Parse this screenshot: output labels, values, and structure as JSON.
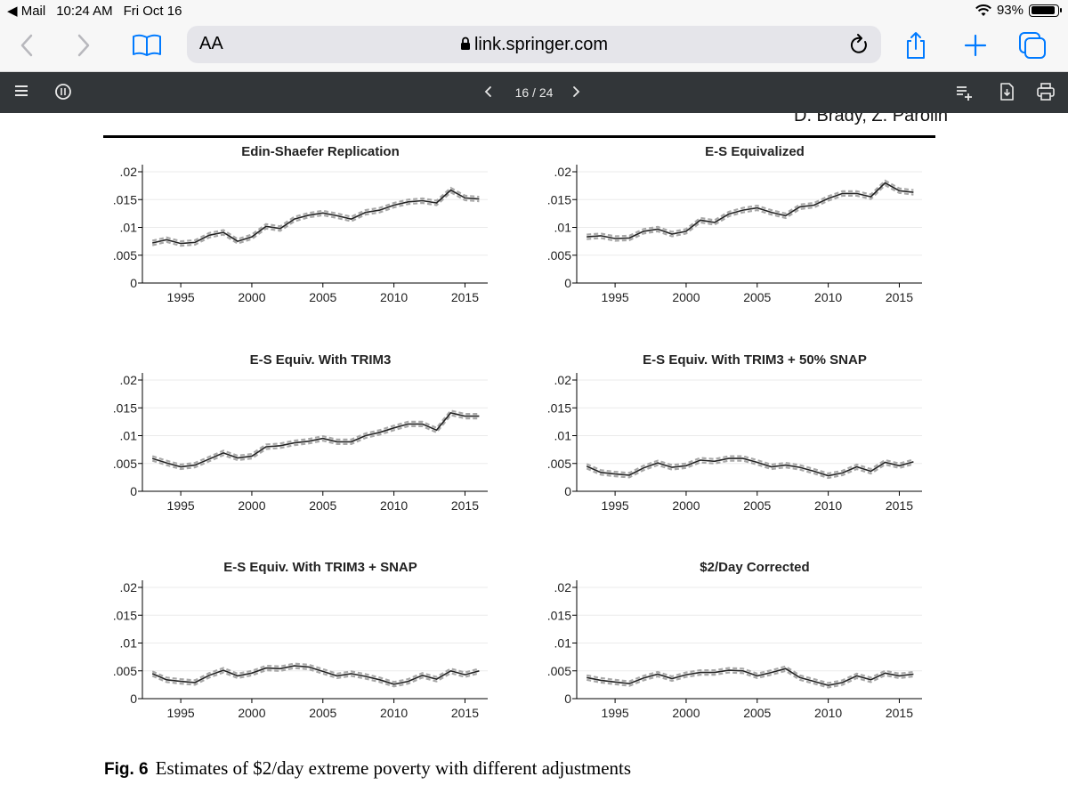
{
  "status_bar": {
    "back_app": "Mail",
    "time": "10:24 AM",
    "date": "Fri Oct 16",
    "battery": "93%",
    "battery_level": 0.93
  },
  "browser": {
    "text_size_label": "AA",
    "url": "link.springer.com"
  },
  "pdf_toolbar": {
    "page_indicator": "16 / 24"
  },
  "document": {
    "running_head": "D. Brady, Z. Parolin",
    "caption_label": "Fig. 6",
    "caption_text": "Estimates of $2/day extreme poverty with different adjustments"
  },
  "colors": {
    "line": "#222222",
    "band": "#a8a8a8",
    "grid": "#ebebeb",
    "pdf_bar": "#323639",
    "safari_bar": "#f7f7f7",
    "address": "#e5e5ea",
    "accent": "#007aff"
  },
  "chart_data": [
    {
      "type": "line",
      "title": "Edin-Shaefer Replication",
      "x": [
        1993,
        1994,
        1995,
        1996,
        1997,
        1998,
        1999,
        2000,
        2001,
        2002,
        2003,
        2004,
        2005,
        2006,
        2007,
        2008,
        2009,
        2010,
        2011,
        2012,
        2013,
        2014,
        2015,
        2016
      ],
      "y": [
        0.0072,
        0.0078,
        0.0071,
        0.0073,
        0.0086,
        0.0091,
        0.0075,
        0.0083,
        0.0102,
        0.0098,
        0.0115,
        0.0122,
        0.0126,
        0.0121,
        0.0115,
        0.0127,
        0.0131,
        0.014,
        0.0146,
        0.0148,
        0.0144,
        0.0167,
        0.0153,
        0.0151
      ],
      "band": 0.0004,
      "xticks": [
        "1995",
        "2000",
        "2005",
        "2010",
        "2015"
      ],
      "yticks": [
        "0",
        ".005",
        ".01",
        ".015",
        ".02"
      ],
      "ylim": [
        0,
        0.02
      ],
      "grid": true
    },
    {
      "type": "line",
      "title": "E-S Equivalized",
      "x": [
        1993,
        1994,
        1995,
        1996,
        1997,
        1998,
        1999,
        2000,
        2001,
        2002,
        2003,
        2004,
        2005,
        2006,
        2007,
        2008,
        2009,
        2010,
        2011,
        2012,
        2013,
        2014,
        2015,
        2016
      ],
      "y": [
        0.0083,
        0.0085,
        0.008,
        0.0081,
        0.0093,
        0.0097,
        0.0088,
        0.0093,
        0.0113,
        0.0109,
        0.0124,
        0.0131,
        0.0135,
        0.0127,
        0.0121,
        0.0137,
        0.014,
        0.0152,
        0.0161,
        0.0161,
        0.0155,
        0.018,
        0.0166,
        0.0163
      ],
      "band": 0.0004,
      "xticks": [
        "1995",
        "2000",
        "2005",
        "2010",
        "2015"
      ],
      "yticks": [
        "0",
        ".005",
        ".01",
        ".015",
        ".02"
      ],
      "ylim": [
        0,
        0.02
      ],
      "grid": true
    },
    {
      "type": "line",
      "title": "E-S Equiv. With TRIM3",
      "x": [
        1993,
        1994,
        1995,
        1996,
        1997,
        1998,
        1999,
        2000,
        2001,
        2002,
        2003,
        2004,
        2005,
        2006,
        2007,
        2008,
        2009,
        2010,
        2011,
        2012,
        2013,
        2014,
        2015,
        2016
      ],
      "y": [
        0.0059,
        0.0051,
        0.0044,
        0.0047,
        0.0058,
        0.0069,
        0.006,
        0.0063,
        0.008,
        0.0082,
        0.0087,
        0.009,
        0.0095,
        0.0089,
        0.0089,
        0.01,
        0.0106,
        0.0114,
        0.0121,
        0.0121,
        0.011,
        0.0141,
        0.0135,
        0.0135
      ],
      "band": 0.0004,
      "xticks": [
        "1995",
        "2000",
        "2005",
        "2010",
        "2015"
      ],
      "yticks": [
        "0",
        ".005",
        ".01",
        ".015",
        ".02"
      ],
      "ylim": [
        0,
        0.02
      ],
      "grid": true
    },
    {
      "type": "line",
      "title": "E-S Equiv. With TRIM3 + 50% SNAP",
      "x": [
        1993,
        1994,
        1995,
        1996,
        1997,
        1998,
        1999,
        2000,
        2001,
        2002,
        2003,
        2004,
        2005,
        2006,
        2007,
        2008,
        2009,
        2010,
        2011,
        2012,
        2013,
        2014,
        2015,
        2016
      ],
      "y": [
        0.0045,
        0.0034,
        0.0031,
        0.0029,
        0.0042,
        0.0051,
        0.0043,
        0.0046,
        0.0056,
        0.0054,
        0.0059,
        0.0059,
        0.0052,
        0.0044,
        0.0047,
        0.0043,
        0.0036,
        0.0028,
        0.0033,
        0.0044,
        0.0036,
        0.0052,
        0.0046,
        0.0053
      ],
      "band": 0.0004,
      "xticks": [
        "1995",
        "2000",
        "2005",
        "2010",
        "2015"
      ],
      "yticks": [
        "0",
        ".005",
        ".01",
        ".015",
        ".02"
      ],
      "ylim": [
        0,
        0.02
      ],
      "grid": true
    },
    {
      "type": "line",
      "title": "E-S Equiv. With TRIM3 + SNAP",
      "x": [
        1993,
        1994,
        1995,
        1996,
        1997,
        1998,
        1999,
        2000,
        2001,
        2002,
        2003,
        2004,
        2005,
        2006,
        2007,
        2008,
        2009,
        2010,
        2011,
        2012,
        2013,
        2014,
        2015,
        2016
      ],
      "y": [
        0.0045,
        0.0034,
        0.0031,
        0.0029,
        0.0042,
        0.0051,
        0.0041,
        0.0046,
        0.0055,
        0.0054,
        0.0059,
        0.0057,
        0.0049,
        0.0041,
        0.0045,
        0.004,
        0.0034,
        0.0026,
        0.0031,
        0.0042,
        0.0035,
        0.005,
        0.0043,
        0.005
      ],
      "band": 0.0004,
      "xticks": [
        "1995",
        "2000",
        "2005",
        "2010",
        "2015"
      ],
      "yticks": [
        "0",
        ".005",
        ".01",
        ".015",
        ".02"
      ],
      "ylim": [
        0,
        0.02
      ],
      "grid": true
    },
    {
      "type": "line",
      "title": "$2/Day Corrected",
      "x": [
        1993,
        1994,
        1995,
        1996,
        1997,
        1998,
        1999,
        2000,
        2001,
        2002,
        2003,
        2004,
        2005,
        2006,
        2007,
        2008,
        2009,
        2010,
        2011,
        2012,
        2013,
        2014,
        2015,
        2016
      ],
      "y": [
        0.0038,
        0.0033,
        0.003,
        0.0027,
        0.0037,
        0.0044,
        0.0036,
        0.0043,
        0.0047,
        0.0047,
        0.0051,
        0.005,
        0.0041,
        0.0047,
        0.0054,
        0.0038,
        0.0031,
        0.0024,
        0.0029,
        0.0041,
        0.0034,
        0.0046,
        0.0041,
        0.0044
      ],
      "band": 0.0004,
      "xticks": [
        "1995",
        "2000",
        "2005",
        "2010",
        "2015"
      ],
      "yticks": [
        "0",
        ".005",
        ".01",
        ".015",
        ".02"
      ],
      "ylim": [
        0,
        0.02
      ],
      "grid": true
    }
  ]
}
